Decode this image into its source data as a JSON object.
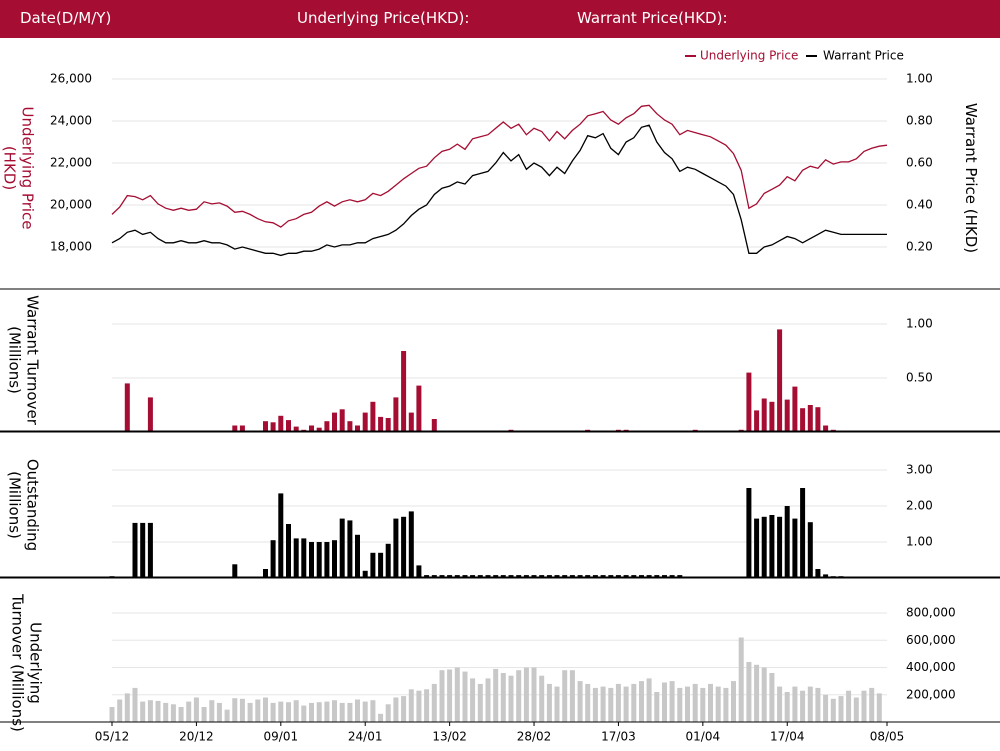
{
  "header": {
    "date_label": "Date(D/M/Y)",
    "underlying_label": "Underlying Price(HKD):",
    "warrant_label": "Warrant Price(HKD):"
  },
  "colors": {
    "header_bg": "#a50d32",
    "underlying": "#a50d32",
    "warrant": "#000000",
    "underlying_turnover": "#c8c8c8"
  },
  "chart_data": [
    {
      "type": "line",
      "title": "",
      "legend": [
        "Underlying Price",
        "Warrant Price"
      ],
      "legend_position": "top-right",
      "ylabel_left": "Underlying Price (HKD)",
      "ylabel_right": "Warrant  Price (HKD)",
      "left_ticks": [
        "26,000",
        "24,000",
        "22,000",
        "20,000",
        "18,000"
      ],
      "right_ticks": [
        "1.00",
        "0.80",
        "0.60",
        "0.40",
        "0.20"
      ],
      "ylim_left": [
        16400,
        26000
      ],
      "ylim_right": [
        0.04,
        1.0
      ],
      "series": [
        {
          "name": "Underlying Price",
          "values": [
            19550,
            19900,
            20450,
            20400,
            20250,
            20450,
            20050,
            19850,
            19750,
            19850,
            19750,
            19800,
            20150,
            20050,
            20100,
            19950,
            19650,
            19700,
            19550,
            19350,
            19200,
            19150,
            18950,
            19250,
            19350,
            19550,
            19650,
            19950,
            20150,
            19950,
            20150,
            20250,
            20150,
            20250,
            20550,
            20450,
            20650,
            20950,
            21250,
            21500,
            21750,
            21850,
            22250,
            22550,
            22650,
            22900,
            22650,
            23150,
            23250,
            23350,
            23650,
            23950,
            23650,
            23850,
            23350,
            23650,
            23500,
            23050,
            23500,
            23150,
            23550,
            23850,
            24250,
            24350,
            24450,
            24050,
            23850,
            24150,
            24350,
            24700,
            24750,
            24350,
            24050,
            23850,
            23350,
            23550,
            23450,
            23350,
            23250,
            23050,
            22850,
            22450,
            21650,
            19850,
            20050,
            20550,
            20750,
            20950,
            21350,
            21150,
            21650,
            21850,
            21750,
            22150,
            21950,
            22050,
            22050,
            22200,
            22550,
            22700,
            22800,
            22850
          ]
        },
        {
          "name": "Warrant Price",
          "values": [
            0.22,
            0.24,
            0.27,
            0.28,
            0.26,
            0.27,
            0.24,
            0.22,
            0.22,
            0.23,
            0.22,
            0.22,
            0.23,
            0.22,
            0.22,
            0.21,
            0.19,
            0.2,
            0.19,
            0.18,
            0.17,
            0.17,
            0.16,
            0.17,
            0.17,
            0.18,
            0.18,
            0.19,
            0.21,
            0.2,
            0.21,
            0.21,
            0.22,
            0.22,
            0.24,
            0.25,
            0.26,
            0.28,
            0.31,
            0.35,
            0.38,
            0.4,
            0.45,
            0.48,
            0.49,
            0.51,
            0.5,
            0.54,
            0.55,
            0.56,
            0.6,
            0.65,
            0.61,
            0.64,
            0.57,
            0.6,
            0.58,
            0.54,
            0.58,
            0.55,
            0.61,
            0.66,
            0.73,
            0.72,
            0.74,
            0.67,
            0.64,
            0.7,
            0.72,
            0.77,
            0.78,
            0.7,
            0.65,
            0.62,
            0.56,
            0.58,
            0.57,
            0.55,
            0.53,
            0.51,
            0.49,
            0.45,
            0.33,
            0.17,
            0.17,
            0.2,
            0.21,
            0.23,
            0.25,
            0.24,
            0.22,
            0.24,
            0.26,
            0.28,
            0.27,
            0.26,
            0.26,
            0.26,
            0.26,
            0.26,
            0.26,
            0.26
          ]
        }
      ]
    },
    {
      "type": "bar",
      "ylabel": "Warrant  Turnover (Millions)",
      "right_ticks": [
        "1.00",
        "0.50"
      ],
      "ylim": [
        0,
        1.2
      ],
      "series": [
        {
          "values": [
            0.01,
            0,
            0.45,
            0,
            0,
            0.32,
            0,
            0,
            0,
            0,
            0,
            0,
            0,
            0,
            0,
            0,
            0.06,
            0.06,
            0,
            0,
            0.1,
            0.09,
            0.15,
            0.11,
            0.05,
            0.02,
            0.06,
            0.04,
            0.1,
            0.18,
            0.21,
            0.1,
            0.06,
            0.18,
            0.28,
            0.14,
            0.13,
            0.32,
            0.75,
            0.18,
            0.43,
            0,
            0.12,
            0,
            0,
            0,
            0,
            0,
            0,
            0,
            0,
            0,
            0.02,
            0,
            0,
            0,
            0,
            0,
            0,
            0,
            0,
            0,
            0.02,
            0,
            0,
            0,
            0.02,
            0.02,
            0,
            0,
            0,
            0,
            0,
            0,
            0,
            0,
            0.02,
            0,
            0,
            0,
            0,
            0,
            0.02,
            0.55,
            0.2,
            0.31,
            0.28,
            0.95,
            0.3,
            0.42,
            0.22,
            0.25,
            0.23,
            0.06,
            0.02,
            0,
            0.01,
            0,
            0,
            0,
            0,
            0,
            0,
            0
          ]
        }
      ]
    },
    {
      "type": "bar",
      "ylabel": "Outstanding (Millions)",
      "right_ticks": [
        "3.00",
        "2.00",
        "1.00"
      ],
      "ylim": [
        0,
        3.6
      ],
      "series": [
        {
          "values": [
            0.05,
            0.04,
            0.04,
            1.53,
            1.53,
            1.53,
            0.04,
            0.04,
            0.04,
            0.04,
            0.04,
            0.04,
            0.04,
            0.04,
            0.04,
            0.04,
            0.38,
            0.04,
            0.04,
            0.04,
            0.25,
            1.05,
            2.35,
            1.5,
            1.1,
            1.1,
            1.0,
            1.0,
            1.0,
            1.05,
            1.65,
            1.6,
            1.2,
            0.2,
            0.7,
            0.7,
            0.95,
            1.65,
            1.7,
            1.85,
            0.35,
            0.08,
            0.08,
            0.08,
            0.08,
            0.08,
            0.08,
            0.08,
            0.08,
            0.08,
            0.08,
            0.08,
            0.08,
            0.08,
            0.08,
            0.08,
            0.08,
            0.08,
            0.08,
            0.08,
            0.08,
            0.08,
            0.08,
            0.08,
            0.08,
            0.08,
            0.08,
            0.08,
            0.08,
            0.08,
            0.08,
            0.08,
            0.08,
            0.08,
            0.08,
            0,
            0,
            0,
            0,
            0,
            0,
            0,
            0,
            2.5,
            1.65,
            1.7,
            1.75,
            1.7,
            2.0,
            1.65,
            2.5,
            1.55,
            0.25,
            0.1,
            0.05,
            0.05,
            0,
            0,
            0,
            0,
            0,
            0
          ]
        }
      ]
    },
    {
      "type": "bar",
      "ylabel": "Underlying Turnover (Millions)",
      "right_ticks": [
        "800,000",
        "600,000",
        "400,000",
        "200,000"
      ],
      "ylim": [
        0,
        800000
      ],
      "xlabels": [
        "05/12",
        "20/12",
        "09/01",
        "24/01",
        "13/02",
        "28/02",
        "17/03",
        "01/04",
        "17/04",
        "08/05"
      ],
      "series": [
        {
          "values": [
            110000,
            165000,
            210000,
            250000,
            150000,
            160000,
            155000,
            140000,
            130000,
            110000,
            150000,
            180000,
            110000,
            160000,
            140000,
            90000,
            175000,
            170000,
            140000,
            165000,
            180000,
            140000,
            150000,
            145000,
            160000,
            120000,
            140000,
            145000,
            150000,
            160000,
            140000,
            140000,
            165000,
            150000,
            160000,
            60000,
            130000,
            180000,
            190000,
            240000,
            230000,
            240000,
            280000,
            380000,
            385000,
            400000,
            370000,
            320000,
            280000,
            320000,
            390000,
            360000,
            340000,
            380000,
            400000,
            400000,
            340000,
            280000,
            260000,
            380000,
            380000,
            300000,
            280000,
            250000,
            260000,
            250000,
            280000,
            260000,
            280000,
            300000,
            320000,
            220000,
            290000,
            300000,
            250000,
            260000,
            280000,
            250000,
            280000,
            260000,
            250000,
            300000,
            620000,
            440000,
            420000,
            400000,
            360000,
            260000,
            220000,
            260000,
            230000,
            260000,
            250000,
            200000,
            170000,
            190000,
            230000,
            180000,
            230000,
            250000,
            210000,
            0
          ]
        }
      ]
    }
  ]
}
